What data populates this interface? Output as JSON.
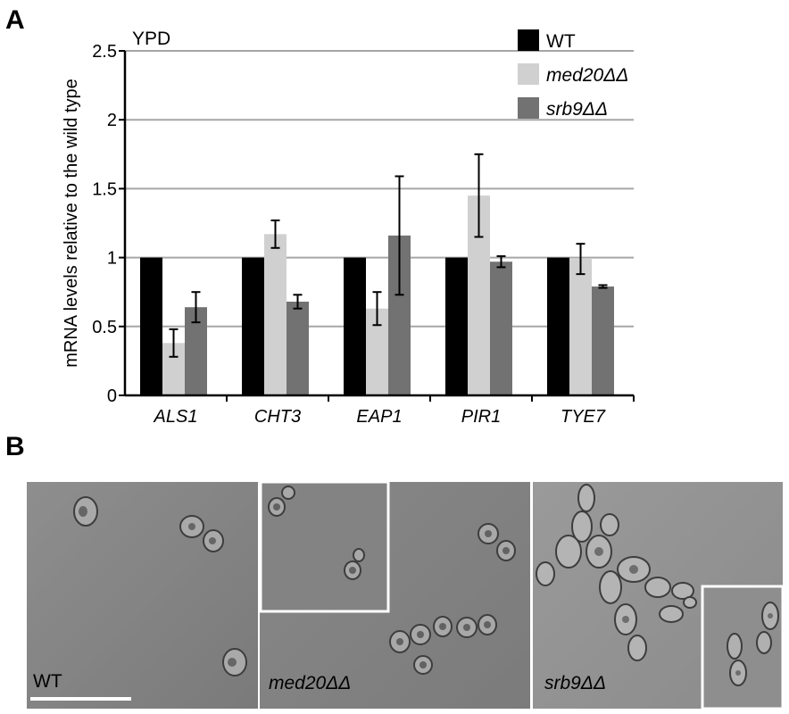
{
  "panel_a_label": "A",
  "panel_b_label": "B",
  "chart_data": {
    "type": "bar",
    "title": "YPD",
    "xlabel": "",
    "ylabel": "mRNA levels relative to the wild type",
    "categories": [
      "ALS1",
      "CHT3",
      "EAP1",
      "PIR1",
      "TYE7"
    ],
    "ylim": [
      0,
      2.5
    ],
    "yticks": [
      "0",
      "0.5",
      "1",
      "1.5",
      "2",
      "2.5"
    ],
    "ytick_values": [
      0,
      0.5,
      1,
      1.5,
      2,
      2.5
    ],
    "grid": true,
    "legend_position": "top-right",
    "series": [
      {
        "name": "WT",
        "color": "#000000",
        "values": [
          1,
          1,
          1,
          1,
          1
        ],
        "errors": [
          0,
          0,
          0,
          0,
          0
        ]
      },
      {
        "name": "med20ΔΔ",
        "color": "#d0d0d0",
        "values": [
          0.38,
          1.17,
          0.63,
          1.45,
          0.99
        ],
        "errors": [
          0.1,
          0.1,
          0.12,
          0.3,
          0.11
        ]
      },
      {
        "name": "srb9ΔΔ",
        "color": "#727272",
        "values": [
          0.64,
          0.68,
          1.16,
          0.97,
          0.79
        ],
        "errors": [
          0.11,
          0.05,
          0.43,
          0.04,
          0.01
        ]
      }
    ]
  },
  "micrographs": [
    {
      "label": "WT",
      "italic": false
    },
    {
      "label": "med20ΔΔ",
      "italic": true
    },
    {
      "label": "srb9ΔΔ",
      "italic": true
    }
  ]
}
